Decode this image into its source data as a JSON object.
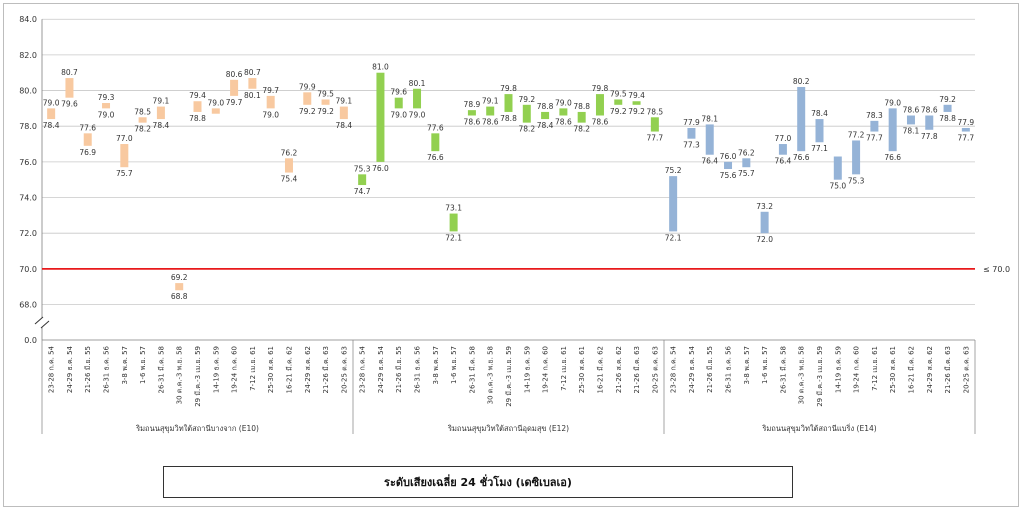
{
  "chart_data": {
    "type": "bar",
    "subtype": "floating-range",
    "y_ticks": [
      "84.0",
      "82.0",
      "80.0",
      "78.0",
      "76.0",
      "74.0",
      "72.0",
      "70.0",
      "68.0",
      "0.0"
    ],
    "ylim": [
      67.0,
      84.0
    ],
    "y_axis_break": true,
    "grid": true,
    "threshold": {
      "value": 70.0,
      "label": "≤ 70.0",
      "color": "#e8191b"
    },
    "legend_title": "ระดับเสียงเฉลี่ย 24 ชั่วโมง (เดซิเบลเอ)",
    "groups": [
      {
        "name": "ริมถนนสุขุมวิทใต้สถานีบางจาก (E10)",
        "color": "#f8c9a0",
        "categories": [
          "23-28 ก.ค. 54",
          "24-29 ธ.ค. 54",
          "21-26 มี.ย. 55",
          "26-31 ธ.ค. 56",
          "3-8 พ.ค. 57",
          "1-6 พ.ย. 57",
          "26-31 มี.ค. 58",
          "30 ต.ค.-3 พ.ย. 58",
          "29 มี.ค.-3 เม.ย. 59",
          "14-19 ธ.ค. 59",
          "19-24 ก.ค. 60",
          "7-12 เม.ย. 61",
          "25-30 ส.ค. 61",
          "16-21 มี.ค. 62",
          "24-29 ส.ค. 62",
          "21-26 มี.ค. 63",
          "20-25 ต.ค. 63"
        ],
        "ranges": [
          [
            78.4,
            79.0
          ],
          [
            79.6,
            80.7
          ],
          [
            76.9,
            77.6
          ],
          [
            79.0,
            79.3
          ],
          [
            75.7,
            77.0
          ],
          [
            78.2,
            78.5
          ],
          [
            78.4,
            79.1
          ],
          [
            68.8,
            69.2
          ],
          [
            78.8,
            79.4
          ],
          [
            78.7,
            79.0
          ],
          [
            79.7,
            80.6
          ],
          [
            80.1,
            80.7
          ],
          [
            79.0,
            79.7
          ],
          [
            75.4,
            76.2
          ],
          [
            79.2,
            79.9
          ],
          [
            79.2,
            79.5
          ],
          [
            78.4,
            79.1
          ]
        ],
        "labels": [
          [
            "79.0",
            "78.4"
          ],
          [
            "80.7",
            "79.6"
          ],
          [
            "77.6",
            "76.9"
          ],
          [
            "79.3",
            "79.0"
          ],
          [
            "77.0",
            "75.7"
          ],
          [
            "78.5",
            "78.2"
          ],
          [
            "79.1",
            "78.4"
          ],
          [
            "69.2",
            "68.8"
          ],
          [
            "79.4",
            "78.8"
          ],
          [
            "79.0",
            ""
          ],
          [
            "80.6",
            "79.7"
          ],
          [
            "80.7",
            "80.1"
          ],
          [
            "79.7",
            "79.0"
          ],
          [
            "76.2",
            "75.4"
          ],
          [
            "79.9",
            "79.2"
          ],
          [
            "79.5",
            "79.2"
          ],
          [
            "79.1",
            "78.4"
          ]
        ]
      },
      {
        "name": "ริมถนนสุขุมวิทใต้สถานีอุดมสุข (E12)",
        "color": "#92d050",
        "categories": [
          "23-28 ก.ค. 54",
          "24-29 ธ.ค. 54",
          "21-26 มี.ย. 55",
          "26-31 ธ.ค. 56",
          "3-8 พ.ค. 57",
          "1-6 พ.ย. 57",
          "26-31 มี.ค. 58",
          "30 ต.ค.-3 พ.ย. 58",
          "29 มี.ค.-3 เม.ย. 59",
          "14-19 ธ.ค. 59",
          "19-24 ก.ค. 60",
          "7-12 เม.ย. 61",
          "25-30 ส.ค. 61",
          "16-21 มี.ค. 62",
          "21-26 ส.ค. 62",
          "21-26 มี.ค. 63",
          "20-25 ต.ค. 63"
        ],
        "ranges": [
          [
            74.7,
            75.3
          ],
          [
            76.0,
            81.0
          ],
          [
            79.0,
            79.6
          ],
          [
            79.0,
            80.1
          ],
          [
            76.6,
            77.6
          ],
          [
            72.1,
            73.1
          ],
          [
            78.6,
            78.9
          ],
          [
            78.6,
            79.1
          ],
          [
            78.8,
            79.8
          ],
          [
            78.2,
            79.2
          ],
          [
            78.4,
            78.8
          ],
          [
            78.6,
            79.0
          ],
          [
            78.2,
            78.8
          ],
          [
            78.6,
            79.8
          ],
          [
            79.2,
            79.5
          ],
          [
            79.2,
            79.4
          ],
          [
            77.7,
            78.5
          ]
        ],
        "labels": [
          [
            "75.3",
            "74.7"
          ],
          [
            "81.0",
            "76.0"
          ],
          [
            "79.6",
            "79.0"
          ],
          [
            "80.1",
            "79.0"
          ],
          [
            "77.6",
            "76.6"
          ],
          [
            "73.1",
            "72.1"
          ],
          [
            "78.9",
            "78.6"
          ],
          [
            "79.1",
            "78.6"
          ],
          [
            "79.8",
            "78.8"
          ],
          [
            "79.2",
            "78.2"
          ],
          [
            "78.8",
            "78.4"
          ],
          [
            "79.0",
            "78.6"
          ],
          [
            "78.8",
            "78.2"
          ],
          [
            "79.8",
            "78.6"
          ],
          [
            "79.5",
            "79.2"
          ],
          [
            "79.4",
            "79.2"
          ],
          [
            "78.5",
            "77.7"
          ]
        ]
      },
      {
        "name": "ริมถนนสุขุมวิทใต้สถานีแบริ่ง (E14)",
        "color": "#95b3d7",
        "categories": [
          "23-28 ก.ค. 54",
          "24-29 ธ.ค. 54",
          "21-26 มี.ย. 55",
          "26-31 ธ.ค. 56",
          "3-8 พ.ค. 57",
          "1-6 พ.ย. 57",
          "26-31 มี.ค. 58",
          "30 ต.ค.-3 พ.ย. 58",
          "29 มี.ค.-3 เม.ย. 59",
          "14-19 ธ.ค. 59",
          "19-24 ก.ค. 60",
          "7-12 เม.ย. 61",
          "25-30 ส.ค. 61",
          "16-21 มี.ค. 62",
          "24-29 ส.ค. 62",
          "21-26 มี.ค. 63",
          "20-25 ต.ค. 63"
        ],
        "ranges": [
          [
            72.1,
            75.2
          ],
          [
            77.3,
            77.9
          ],
          [
            76.4,
            78.1
          ],
          [
            75.6,
            76.0
          ],
          [
            75.7,
            76.2
          ],
          [
            72.0,
            73.2
          ],
          [
            76.4,
            77.0
          ],
          [
            76.6,
            80.2
          ],
          [
            77.1,
            78.4
          ],
          [
            75.0,
            76.3
          ],
          [
            75.3,
            77.2
          ],
          [
            77.7,
            78.3
          ],
          [
            76.6,
            79.0
          ],
          [
            78.1,
            78.6
          ],
          [
            77.8,
            78.6
          ],
          [
            78.8,
            79.2
          ],
          [
            77.7,
            77.9
          ]
        ],
        "labels": [
          [
            "75.2",
            "72.1"
          ],
          [
            "77.9",
            "77.3"
          ],
          [
            "78.1",
            "76.4"
          ],
          [
            "76.0",
            "75.6"
          ],
          [
            "76.2",
            "75.7"
          ],
          [
            "73.2",
            "72.0"
          ],
          [
            "77.0",
            "76.4"
          ],
          [
            "80.2",
            "76.6"
          ],
          [
            "78.4",
            "77.1"
          ],
          [
            "",
            "75.0"
          ],
          [
            "77.2",
            "75.3"
          ],
          [
            "78.3",
            "77.7"
          ],
          [
            "79.0",
            "76.6"
          ],
          [
            "78.6",
            "78.1"
          ],
          [
            "78.6",
            "77.8"
          ],
          [
            "79.2",
            "78.8"
          ],
          [
            "77.9",
            "77.7"
          ]
        ]
      }
    ]
  }
}
